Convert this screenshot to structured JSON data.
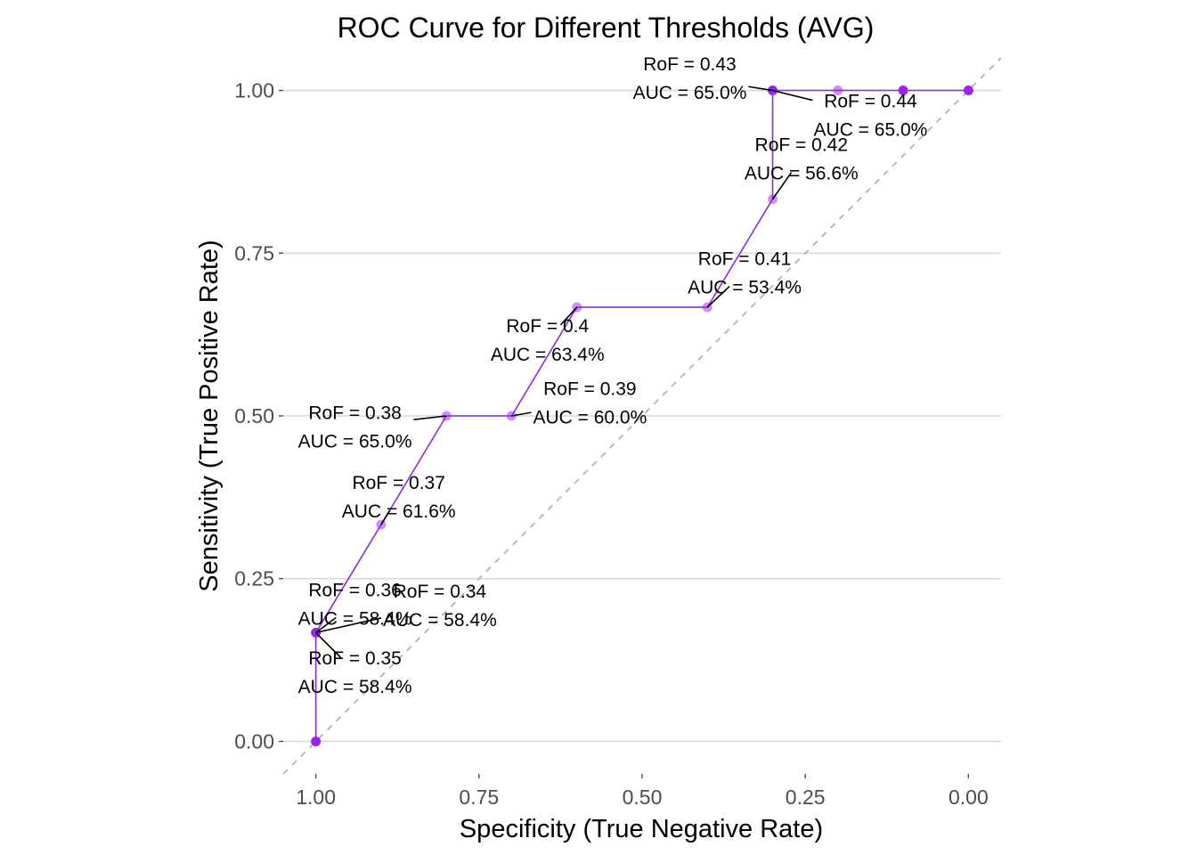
{
  "chart_data": {
    "type": "line",
    "title": "ROC Curve for Different Thresholds (AVG)",
    "xlabel": "Specificity (True Negative Rate)",
    "ylabel": "Sensitivity (True Positive Rate)",
    "xlim": [
      1.05,
      -0.05
    ],
    "ylim": [
      -0.05,
      1.05
    ],
    "x_reversed": true,
    "x_ticks": [
      1.0,
      0.75,
      0.5,
      0.25,
      0.0
    ],
    "x_tick_labels": [
      "1.00",
      "0.75",
      "0.50",
      "0.25",
      "0.00"
    ],
    "y_ticks": [
      0.0,
      0.25,
      0.5,
      0.75,
      1.0
    ],
    "y_tick_labels": [
      "0.00",
      "0.25",
      "0.50",
      "0.75",
      "1.00"
    ],
    "grid": "horizontal major",
    "colors": {
      "line": "#8a2be2",
      "point": "#a020f0",
      "diagonal": "#b3b3b3",
      "grid": "#d9d9d9"
    },
    "roc_steps": [
      {
        "x": 1.0,
        "y": 0.0
      },
      {
        "x": 1.0,
        "y": 0.167
      },
      {
        "x": 0.9,
        "y": 0.333
      },
      {
        "x": 0.8,
        "y": 0.5
      },
      {
        "x": 0.7,
        "y": 0.5
      },
      {
        "x": 0.6,
        "y": 0.667
      },
      {
        "x": 0.4,
        "y": 0.667
      },
      {
        "x": 0.3,
        "y": 0.833
      },
      {
        "x": 0.3,
        "y": 1.0
      },
      {
        "x": 0.0,
        "y": 1.0
      }
    ],
    "points": [
      {
        "x": 1.0,
        "y": 0.0,
        "alpha": 1.0
      },
      {
        "x": 1.0,
        "y": 0.167,
        "alpha": 1.0
      },
      {
        "x": 0.9,
        "y": 0.333,
        "alpha": 0.5
      },
      {
        "x": 0.8,
        "y": 0.5,
        "alpha": 0.5
      },
      {
        "x": 0.7,
        "y": 0.5,
        "alpha": 0.5
      },
      {
        "x": 0.6,
        "y": 0.667,
        "alpha": 0.5
      },
      {
        "x": 0.4,
        "y": 0.667,
        "alpha": 0.5
      },
      {
        "x": 0.3,
        "y": 0.833,
        "alpha": 0.5
      },
      {
        "x": 0.3,
        "y": 1.0,
        "alpha": 1.0
      },
      {
        "x": 0.2,
        "y": 1.0,
        "alpha": 0.5
      },
      {
        "x": 0.1,
        "y": 1.0,
        "alpha": 1.0
      },
      {
        "x": 0.0,
        "y": 1.0,
        "alpha": 1.0
      }
    ],
    "annotations": [
      {
        "point": {
          "x": 1.0,
          "y": 0.167
        },
        "label_at": {
          "x": 0.81,
          "y": 0.21
        },
        "line1": "RoF = 0.34",
        "line2": "AUC = 58.4%"
      },
      {
        "point": {
          "x": 1.0,
          "y": 0.167
        },
        "label_at": {
          "x": 0.94,
          "y": 0.107
        },
        "line1": "RoF = 0.35",
        "line2": "AUC = 58.4%"
      },
      {
        "point": {
          "x": 1.0,
          "y": 0.167
        },
        "label_at": {
          "x": 0.94,
          "y": 0.212
        },
        "line1": "RoF = 0.36",
        "line2": "AUC = 58.4%"
      },
      {
        "point": {
          "x": 0.9,
          "y": 0.333
        },
        "label_at": {
          "x": 0.873,
          "y": 0.377
        },
        "line1": "RoF = 0.37",
        "line2": "AUC = 61.6%"
      },
      {
        "point": {
          "x": 0.8,
          "y": 0.5
        },
        "label_at": {
          "x": 0.94,
          "y": 0.484
        },
        "line1": "RoF = 0.38",
        "line2": "AUC = 65.0%"
      },
      {
        "point": {
          "x": 0.7,
          "y": 0.5
        },
        "label_at": {
          "x": 0.58,
          "y": 0.521
        },
        "line1": "RoF = 0.39",
        "line2": "AUC = 60.0%"
      },
      {
        "point": {
          "x": 0.6,
          "y": 0.667
        },
        "label_at": {
          "x": 0.645,
          "y": 0.618
        },
        "line1": "RoF = 0.4",
        "line2": "AUC = 63.4%"
      },
      {
        "point": {
          "x": 0.4,
          "y": 0.667
        },
        "label_at": {
          "x": 0.343,
          "y": 0.721
        },
        "line1": "RoF = 0.41",
        "line2": "AUC = 53.4%"
      },
      {
        "point": {
          "x": 0.3,
          "y": 0.833
        },
        "label_at": {
          "x": 0.256,
          "y": 0.896
        },
        "line1": "RoF = 0.42",
        "line2": "AUC = 56.6%"
      },
      {
        "point": {
          "x": 0.3,
          "y": 1.0
        },
        "label_at": {
          "x": 0.427,
          "y": 1.02
        },
        "line1": "RoF = 0.43",
        "line2": "AUC = 65.0%"
      },
      {
        "point": {
          "x": 0.3,
          "y": 1.0
        },
        "label_at": {
          "x": 0.15,
          "y": 0.963
        },
        "line1": "RoF = 0.44",
        "line2": "AUC = 65.0%"
      }
    ]
  }
}
